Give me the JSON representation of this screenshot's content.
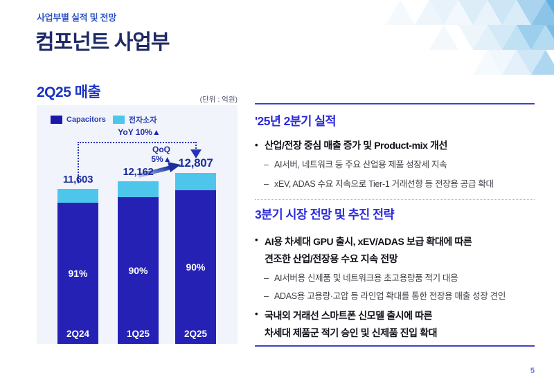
{
  "page": {
    "eyebrow": "사업부별 실적 및 전망",
    "title": "컴포넌트 사업부",
    "page_number": "5"
  },
  "chart_data": {
    "type": "bar",
    "stacked": true,
    "title": "2Q25 매출",
    "unit_label": "(단위 : 억원)",
    "categories": [
      "2Q24",
      "1Q25",
      "2Q25"
    ],
    "totals": [
      11603,
      12162,
      12807
    ],
    "total_labels": [
      "11,603",
      "12,162",
      "12,807"
    ],
    "series": [
      {
        "name": "Capacitors",
        "color": "#2521b5",
        "share_pct": [
          91,
          90,
          90
        ],
        "share_labels": [
          "91%",
          "90%",
          "90%"
        ]
      },
      {
        "name": "전자소자",
        "color": "#4ec6ec",
        "share_pct": [
          9,
          10,
          10
        ]
      }
    ],
    "annotations": {
      "yoy": "YoY 10%▲",
      "qoq_line1": "QoQ",
      "qoq_line2": "5%▲"
    },
    "ylim": [
      0,
      12807
    ],
    "legend_position": "top-left",
    "grid": false
  },
  "right": {
    "markers": {
      "bullet": "•",
      "dash": "–"
    },
    "sections": [
      {
        "heading": "'25년 2분기 실적",
        "bullet1": "산업/전장 중심 매출 증가 및 Product-mix 개선",
        "sub1": "AI서버, 네트워크 등 주요 산업용 제품 성장세 지속",
        "sub2": "xEV, ADAS 수요 지속으로 Tier-1 거래선향 등 전장용 공급 확대"
      },
      {
        "heading": "3분기 시장 전망 및 추진 전략",
        "bullet1_line1": "AI용 차세대 GPU 출시, xEV/ADAS 보급 확대에 따른",
        "bullet1_line2": "견조한 산업/전장용 수요 지속 전망",
        "sub1": "AI서버용 신제품 및 네트워크용 초고용량품 적기 대응",
        "sub2": "ADAS용 고용량·고압 등 라인업 확대를 통한 전장용 매출 성장 견인",
        "bullet2_line1": "국내외 거래선 스마트폰 신모델 출시에 따른",
        "bullet2_line2": "차세대 제품군 적기 승인 및 신제품 진입 확대"
      }
    ]
  },
  "colors": {
    "accent_blue": "#2b2bdc",
    "heading_navy": "#1e2a66",
    "bar_navy": "#2521b5",
    "bar_cyan": "#4ec6ec",
    "panel_bg": "#f1f4fa"
  }
}
